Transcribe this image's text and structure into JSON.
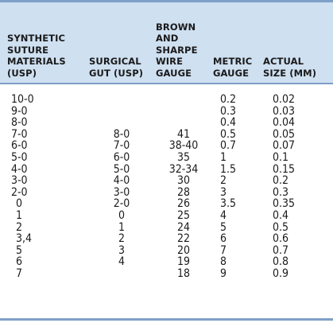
{
  "table": {
    "headers": [
      {
        "key": "synthetic",
        "lines": [
          "SYNTHETIC",
          "SUTURE",
          "MATERIALS",
          "(USP)"
        ]
      },
      {
        "key": "surgical",
        "lines": [
          "SURGICAL",
          "GUT (USP)"
        ]
      },
      {
        "key": "brown",
        "lines": [
          "BROWN",
          "AND",
          "SHARPE",
          "WIRE",
          "GAUGE"
        ]
      },
      {
        "key": "metric",
        "lines": [
          "METRIC",
          "GAUGE"
        ]
      },
      {
        "key": "actual",
        "lines": [
          "ACTUAL",
          "SIZE (MM)"
        ]
      }
    ],
    "synthetic": [
      "10-0",
      "9-0",
      "8-0",
      "7-0",
      "6-0",
      "5-0",
      "4-0",
      "3-0",
      "2-0",
      "0",
      "1",
      "2",
      "3,4",
      "5",
      "6",
      "7",
      ""
    ],
    "surgical": [
      "",
      "",
      "",
      "8-0",
      "7-0",
      "6-0",
      "5-0",
      "4-0",
      "3-0",
      "2-0",
      "0",
      "1",
      "2",
      "3",
      "4",
      "",
      ""
    ],
    "brown": [
      "",
      "",
      "",
      "41",
      "38-40",
      "35",
      "32-34",
      "30",
      "28",
      "26",
      "25",
      "24",
      "22",
      "20",
      "19",
      "18",
      ""
    ],
    "metric": [
      "0.2",
      "0.3",
      "0.4",
      "0.5",
      "0.7",
      "1",
      "1.5",
      "2",
      "3",
      "3.5",
      "4",
      "5",
      "6",
      "7",
      "8",
      "9",
      ""
    ],
    "actual": [
      "0.02",
      "0.03",
      "0.04",
      "0.05",
      "0.07",
      "0.1",
      "0.15",
      "0.2",
      "0.3",
      "0.35",
      "0.4",
      "0.5",
      "0.6",
      "0.7",
      "0.8",
      "0.9",
      ""
    ]
  }
}
